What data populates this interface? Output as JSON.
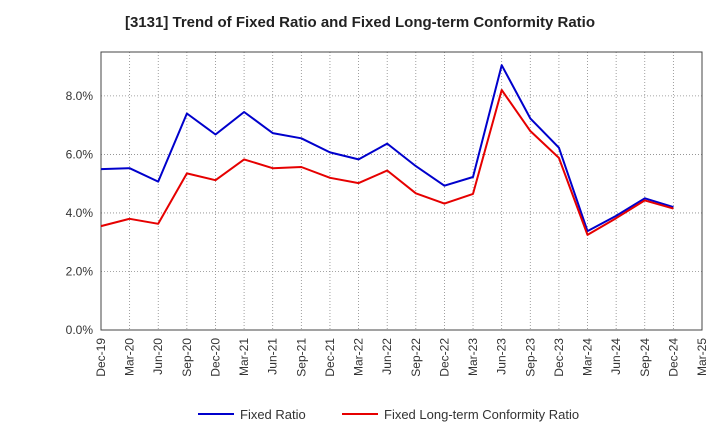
{
  "chart_data": {
    "type": "line",
    "title": "[3131]  Trend of Fixed Ratio and Fixed Long-term Conformity Ratio",
    "xlabel": "",
    "ylabel": "",
    "categories": [
      "Dec-19",
      "Mar-20",
      "Jun-20",
      "Sep-20",
      "Dec-20",
      "Mar-21",
      "Jun-21",
      "Sep-21",
      "Dec-21",
      "Mar-22",
      "Jun-22",
      "Sep-22",
      "Dec-22",
      "Mar-23",
      "Jun-23",
      "Sep-23",
      "Dec-23",
      "Mar-24",
      "Jun-24",
      "Sep-24",
      "Dec-24",
      "Mar-25"
    ],
    "ylim": [
      0,
      9.5
    ],
    "yticks": [
      0,
      2,
      4,
      6,
      8
    ],
    "ytick_labels": [
      "0.0%",
      "2.0%",
      "4.0%",
      "6.0%",
      "8.0%"
    ],
    "grid": true,
    "legend_position": "bottom",
    "series": [
      {
        "name": "Fixed Ratio",
        "color": "#0000cc",
        "values": [
          5.5,
          5.53,
          5.07,
          7.4,
          6.68,
          7.45,
          6.73,
          6.55,
          6.07,
          5.83,
          6.37,
          5.6,
          4.93,
          5.23,
          9.05,
          7.23,
          6.23,
          3.38,
          3.9,
          4.5,
          4.2,
          null
        ]
      },
      {
        "name": "Fixed Long-term Conformity Ratio",
        "color": "#e60000",
        "values": [
          3.55,
          3.8,
          3.63,
          5.35,
          5.12,
          5.83,
          5.53,
          5.57,
          5.2,
          5.02,
          5.45,
          4.67,
          4.32,
          4.65,
          8.2,
          6.8,
          5.88,
          3.25,
          3.82,
          4.43,
          4.15,
          null
        ]
      }
    ]
  }
}
